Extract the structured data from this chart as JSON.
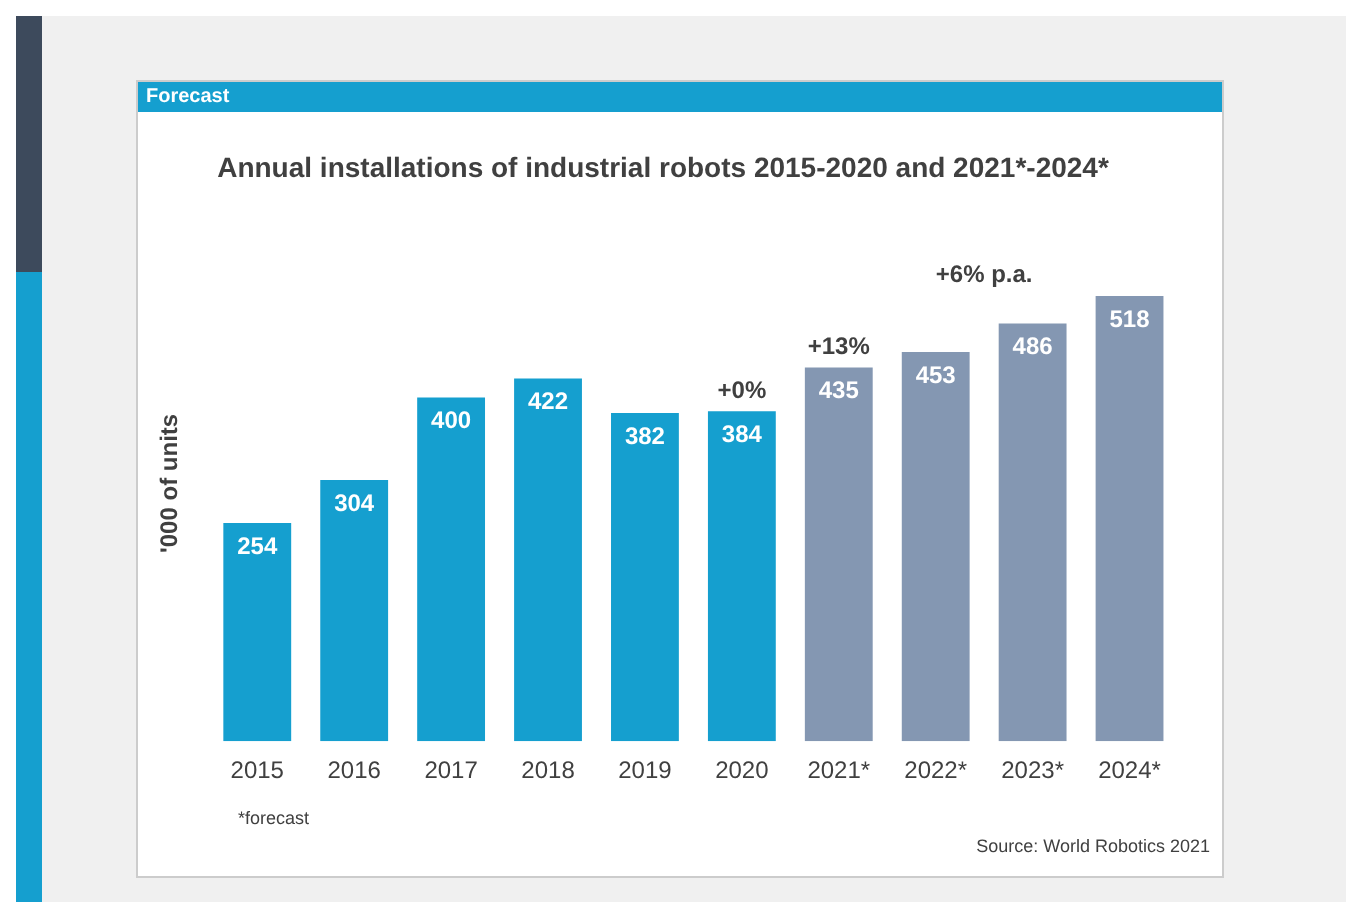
{
  "chart_data": {
    "type": "bar",
    "title": "Annual installations of industrial robots 2015-2020 and 2021*-2024*",
    "ylabel": "'000 of units",
    "categories": [
      "2015",
      "2016",
      "2017",
      "2018",
      "2019",
      "2020",
      "2021*",
      "2022*",
      "2023*",
      "2024*"
    ],
    "values": [
      254,
      304,
      400,
      422,
      382,
      384,
      435,
      453,
      486,
      518
    ],
    "colors": [
      "#159fcf",
      "#159fcf",
      "#159fcf",
      "#159fcf",
      "#159fcf",
      "#159fcf",
      "#8497b2",
      "#8497b2",
      "#8497b2",
      "#8497b2"
    ],
    "data_labels": true,
    "grid": false,
    "legend": false,
    "annotations": [
      "Forecast",
      "*forecast",
      "Source: World Robotics 2021",
      "+0%",
      "+13%",
      "+6% p.a."
    ]
  }
}
